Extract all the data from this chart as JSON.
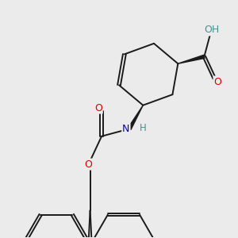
{
  "background_color": "#ebebeb",
  "bond_color": "#1a1a1a",
  "atom_colors": {
    "O": "#dd0000",
    "N": "#0000cc",
    "H_N": "#4a9090",
    "H_O": "#4a9090",
    "C": "#1a1a1a"
  },
  "lw": 1.4,
  "fig_size": [
    3.0,
    3.0
  ],
  "dpi": 100
}
